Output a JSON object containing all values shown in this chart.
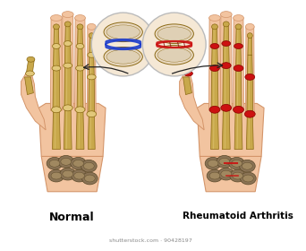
{
  "bg_color": "#ffffff",
  "skin_color": "#f2c4a0",
  "skin_dark": "#d4956a",
  "skin_light": "#f8dcc8",
  "bone_color": "#c8a84b",
  "bone_dark": "#8b6914",
  "bone_light": "#e2c87a",
  "bone_mid": "#b8941e",
  "carpal_color": "#8a7355",
  "carpal_dark": "#5a4828",
  "carpal_light": "#a08860",
  "ra_red": "#cc1111",
  "ra_red_light": "#ff4444",
  "joint_normal_blue": "#1a3acc",
  "joint_ra_red": "#cc1111",
  "circle_bg": "#f5e8d5",
  "circle_edge": "#bbbbbb",
  "text_normal": "Normal",
  "text_ra": "Rheumatoid Arthritis",
  "watermark": "shutterstock.com · 90428197",
  "arrow_color": "#222222"
}
